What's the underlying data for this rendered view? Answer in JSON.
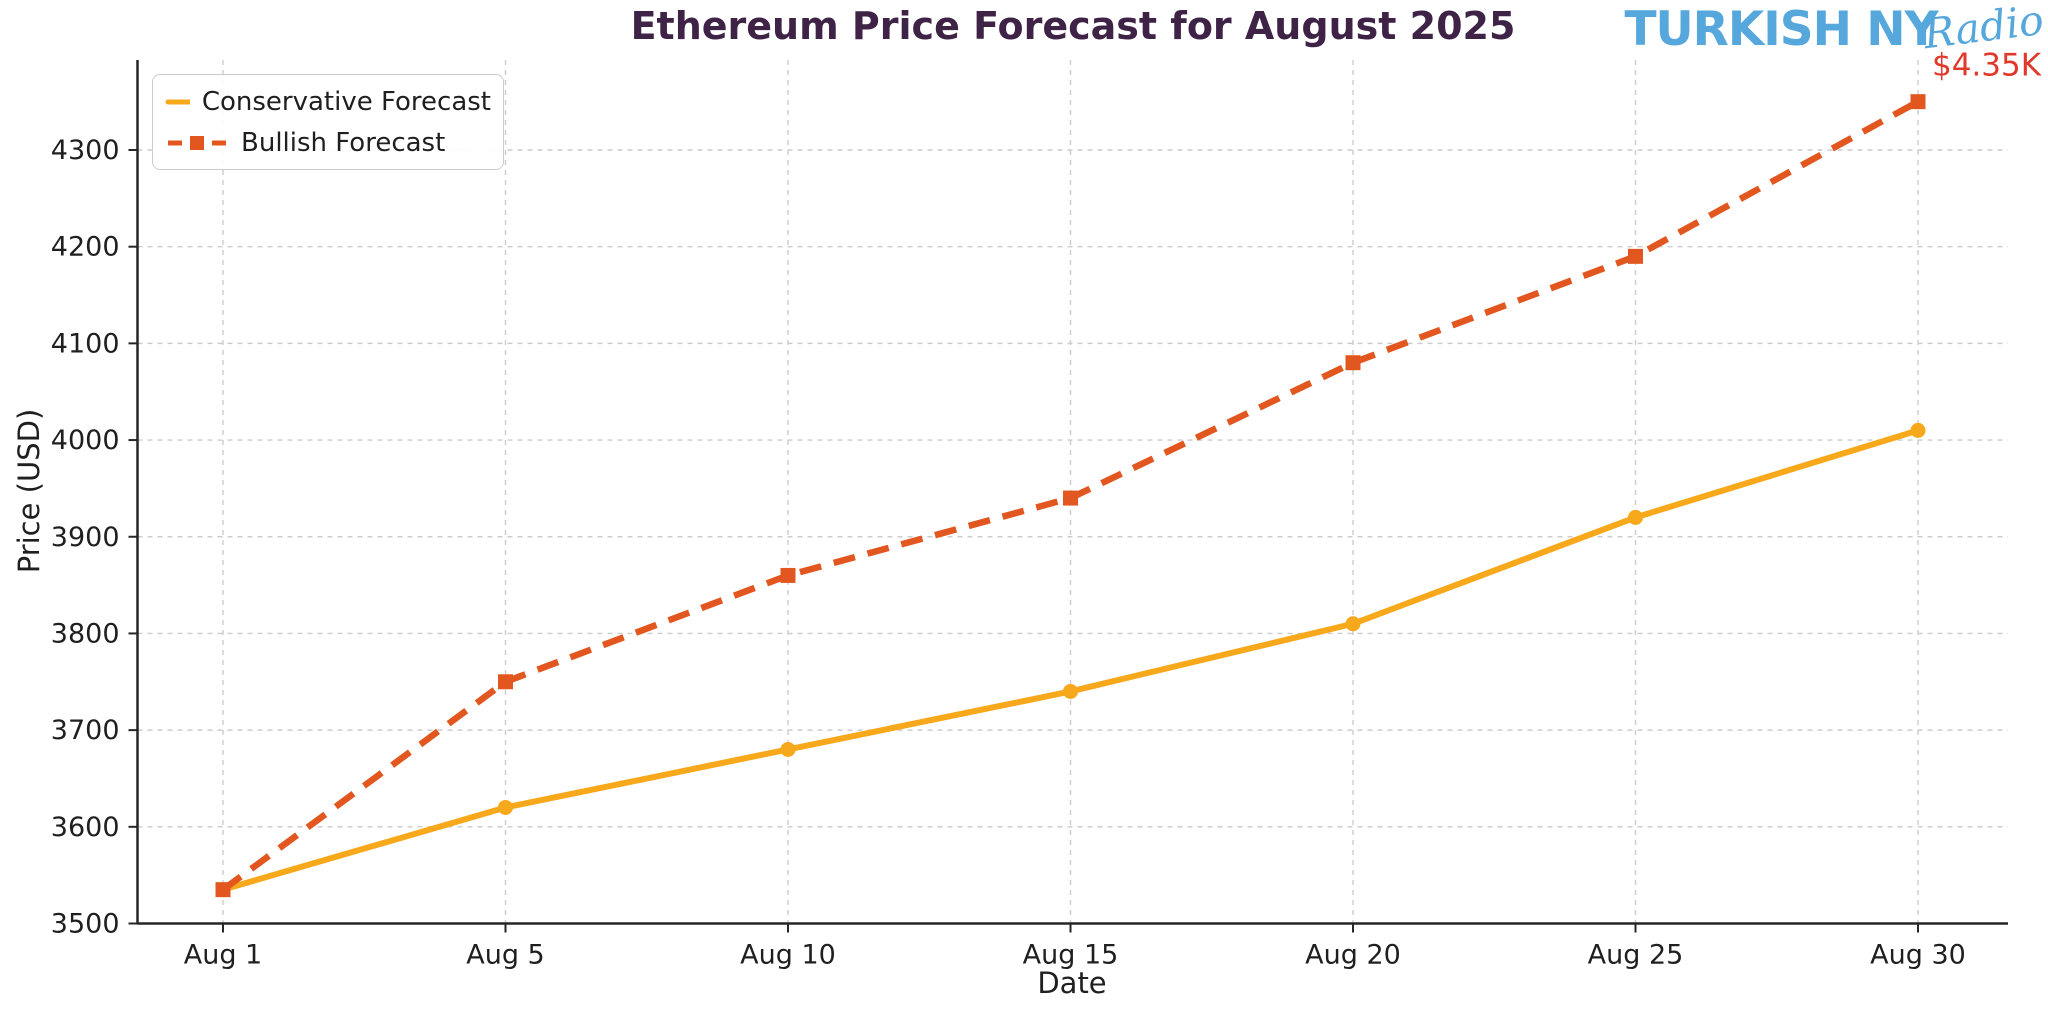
{
  "header": {
    "title": "Ethereum Price Forecast for August 2025",
    "logo": {
      "part1": "TURKISH NY",
      "part2": "Radio"
    }
  },
  "chart_data": {
    "type": "line",
    "title": "Ethereum Price Forecast for August 2025",
    "xlabel": "Date",
    "ylabel": "Price (USD)",
    "categories": [
      "Aug 1",
      "Aug 5",
      "Aug 10",
      "Aug 15",
      "Aug 20",
      "Aug 25",
      "Aug 30"
    ],
    "y_ticks": [
      3500,
      3600,
      3700,
      3800,
      3900,
      4000,
      4100,
      4200,
      4300
    ],
    "ylim": [
      3500,
      4395
    ],
    "grid": true,
    "legend_position": "upper left",
    "series": [
      {
        "name": "Conservative Forecast",
        "values": [
          3535,
          3620,
          3680,
          3740,
          3810,
          3920,
          4010
        ],
        "color": "#f7a81b",
        "style": "solid",
        "marker": "circle"
      },
      {
        "name": "Bullish Forecast",
        "values": [
          3535,
          3750,
          3860,
          3940,
          4080,
          4190,
          4350
        ],
        "color": "#e2571f",
        "style": "dashed",
        "marker": "square"
      }
    ],
    "annotation": {
      "text": "$4.35K",
      "color": "#e0392b",
      "series": "Bullish Forecast",
      "index": 6
    }
  },
  "colors": {
    "title": "#3e2347",
    "logo_blue": "#55a7dc",
    "grid": "#cccccc",
    "axis": "#262626",
    "tick_text": "#1f1f1f",
    "background": "#ffffff"
  }
}
